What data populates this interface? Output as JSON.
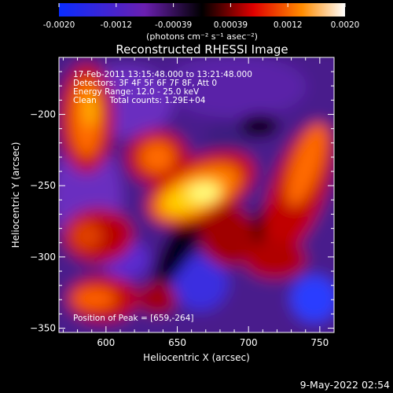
{
  "chart_data": {
    "type": "heatmap",
    "title": "Reconstructed RHESSI Image",
    "xlabel": "Heliocentric X (arcsec)",
    "ylabel": "Heliocentric Y (arcsec)",
    "xlim": [
      567,
      760
    ],
    "ylim": [
      -353,
      -160
    ],
    "x_ticks": [
      600,
      650,
      700,
      750
    ],
    "y_ticks": [
      -200,
      -250,
      -300,
      -350
    ],
    "colorbar": {
      "label": "(photons cm⁻² s⁻¹ asec⁻²)",
      "range": [
        -0.002,
        0.002
      ],
      "tick_labels": [
        "-0.0020",
        "-0.0012",
        "-0.00039",
        "0.00039",
        "0.0012",
        "0.0020"
      ],
      "colormap": "blue-purple-black-red-orange-yellow-white",
      "colors": {
        "low": "#0a2cff",
        "mid_low": "#6a1fb0",
        "zero": "#000000",
        "mid_high": "#e00000",
        "high": "#ff8c00",
        "top": "#ffffff"
      }
    },
    "annotations": {
      "time_range": "17-Feb-2011 13:15:48.000 to 13:21:48.000",
      "detectors": "Detectors: 3F 4F 5F 6F 7F 8F, Att 0",
      "energy": "Energy Range: 12.0 - 25.0 keV",
      "method": "Clean     Total counts: 1.29E+04",
      "peak": "Position of Peak = [659,-264]"
    },
    "peak": {
      "x": 659,
      "y": -264
    },
    "total_counts": "1.29E+04"
  },
  "footer": {
    "timestamp": "9-May-2022 02:54"
  }
}
